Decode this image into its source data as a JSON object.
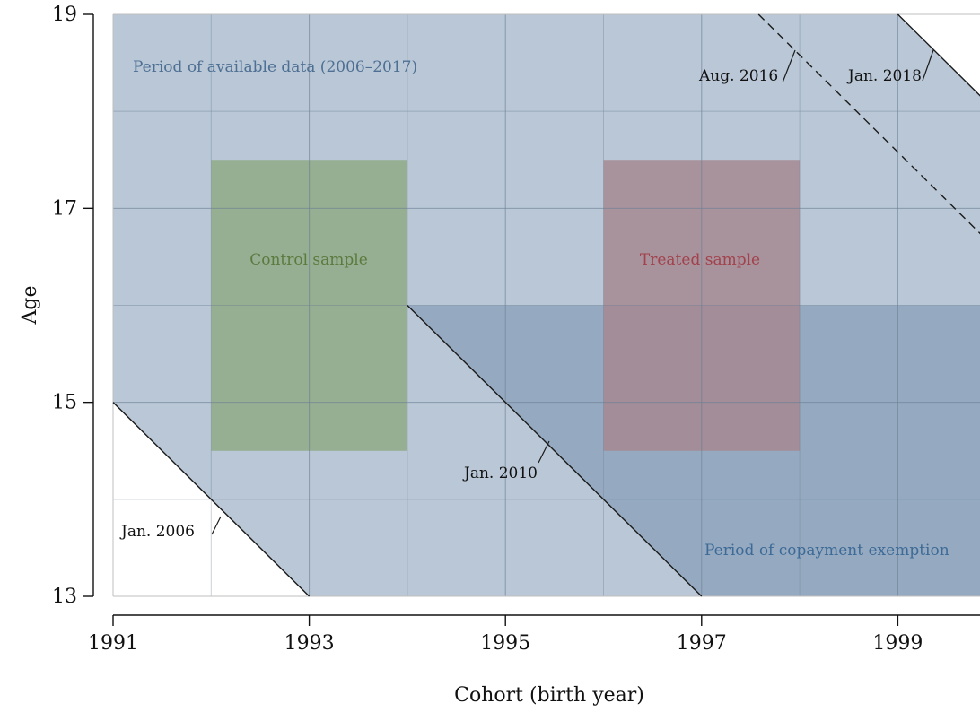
{
  "chart_data": {
    "type": "area",
    "xlabel": "Cohort (birth year)",
    "ylabel": "Age",
    "xlim": [
      1991,
      2000
    ],
    "ylim": [
      13,
      19
    ],
    "x_ticks": [
      "1991",
      "1993",
      "1995",
      "1997",
      "1999"
    ],
    "y_ticks": [
      "13",
      "15",
      "17",
      "19"
    ],
    "grid": true,
    "regions": [
      {
        "name": "available_data",
        "label": "Period of available data (2006–2017)",
        "polygon": [
          [
            1991,
            15
          ],
          [
            1991,
            19
          ],
          [
            1999,
            19
          ],
          [
            2000,
            18
          ],
          [
            2000,
            13
          ],
          [
            1993,
            13
          ]
        ],
        "color": "#b9c7d6"
      },
      {
        "name": "copayment_exemption",
        "label": "Period of copayment exemption",
        "polygon": [
          [
            1994,
            16
          ],
          [
            2000,
            16
          ],
          [
            2000,
            13
          ],
          [
            1997,
            13
          ]
        ],
        "color": "#8ea4bd"
      },
      {
        "name": "control_sample",
        "label": "Control sample",
        "polygon": [
          [
            1992,
            14.5
          ],
          [
            1992,
            17.5
          ],
          [
            1994,
            17.5
          ],
          [
            1994,
            14.5
          ]
        ],
        "color": "#93ab8c"
      },
      {
        "name": "treated_sample",
        "label": "Treated sample",
        "polygon": [
          [
            1996,
            14.5
          ],
          [
            1996,
            17.5
          ],
          [
            1998,
            17.5
          ],
          [
            1998,
            14.5
          ]
        ],
        "color": "#a5868f"
      }
    ],
    "lines": [
      {
        "label": "Jan. 2006",
        "style": "solid",
        "points": [
          [
            1991,
            15
          ],
          [
            1993,
            13
          ]
        ]
      },
      {
        "label": "Jan. 2010",
        "style": "solid",
        "points": [
          [
            1994,
            16
          ],
          [
            1997,
            13
          ]
        ]
      },
      {
        "label": "Aug. 2016",
        "style": "dashed",
        "points": [
          [
            1997.58,
            19
          ],
          [
            2000,
            16.58
          ]
        ]
      },
      {
        "label": "Jan. 2018",
        "style": "solid",
        "points": [
          [
            1999,
            19
          ],
          [
            2000,
            18
          ]
        ]
      }
    ]
  },
  "colors": {
    "available_text": "#4d6f93",
    "copay_text": "#3d6a96",
    "control_text": "#5b7a3e",
    "treated_text": "#a2424c",
    "grid_line": "#6c7f93",
    "grid_white": "#bfbfbf"
  }
}
